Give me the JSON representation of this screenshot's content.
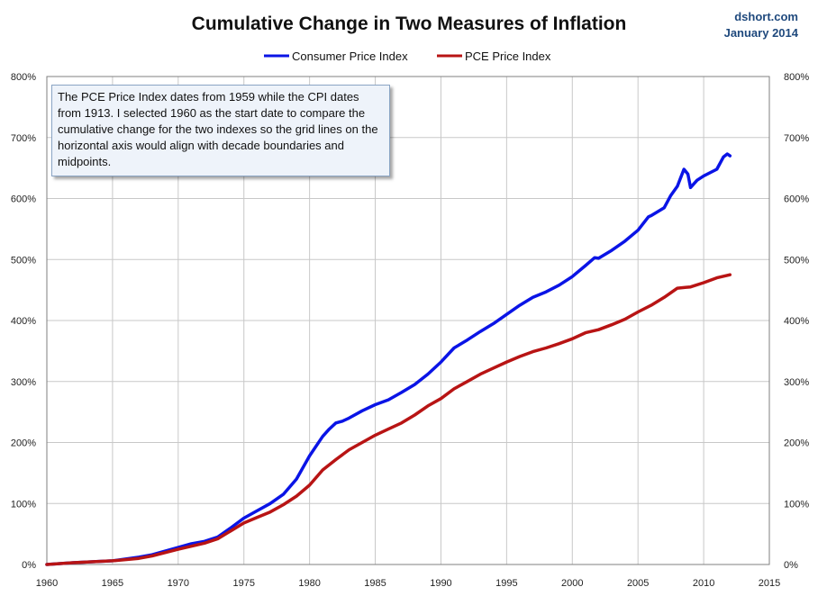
{
  "chart_data": {
    "type": "line",
    "title": "Cumulative Change in Two Measures of Inflation",
    "source": "dshort.com",
    "date_label": "January 2014",
    "annotation": "The PCE Price Index dates from 1959 while the CPI dates from 1913. I selected 1960 as the start date to compare the cumulative change for the two indexes so the grid lines on the horizontal  axis would align with decade boundaries and midpoints.",
    "x_ticks": [
      "1960",
      "1965",
      "1970",
      "1975",
      "1980",
      "1985",
      "1990",
      "1995",
      "2000",
      "2005",
      "2010",
      "2015"
    ],
    "y_ticks": [
      "0%",
      "100%",
      "200%",
      "300%",
      "400%",
      "500%",
      "600%",
      "700%",
      "800%"
    ],
    "xlim": [
      1960,
      2015
    ],
    "ylim": [
      0,
      800
    ],
    "grid": true,
    "legend_position": "top-center",
    "colors": {
      "cpi": "#0a14e6",
      "pce": "#b81414",
      "grid": "#c8c8c8"
    },
    "series": [
      {
        "name": "Consumer Price Index",
        "key": "cpi",
        "points": [
          [
            1960,
            0
          ],
          [
            1962,
            3
          ],
          [
            1965,
            6
          ],
          [
            1967,
            12
          ],
          [
            1968,
            16
          ],
          [
            1970,
            28
          ],
          [
            1971,
            34
          ],
          [
            1972,
            38
          ],
          [
            1973,
            45
          ],
          [
            1974,
            60
          ],
          [
            1975,
            76
          ],
          [
            1976,
            88
          ],
          [
            1977,
            100
          ],
          [
            1978,
            115
          ],
          [
            1979,
            140
          ],
          [
            1980,
            178
          ],
          [
            1981,
            210
          ],
          [
            1981.5,
            222
          ],
          [
            1982,
            232
          ],
          [
            1982.5,
            235
          ],
          [
            1983,
            240
          ],
          [
            1984,
            252
          ],
          [
            1985,
            262
          ],
          [
            1986,
            270
          ],
          [
            1987,
            282
          ],
          [
            1988,
            295
          ],
          [
            1989,
            312
          ],
          [
            1990,
            332
          ],
          [
            1991,
            355
          ],
          [
            1992,
            368
          ],
          [
            1993,
            382
          ],
          [
            1994,
            395
          ],
          [
            1995,
            410
          ],
          [
            1996,
            425
          ],
          [
            1997,
            438
          ],
          [
            1998,
            447
          ],
          [
            1999,
            458
          ],
          [
            2000,
            472
          ],
          [
            2001,
            490
          ],
          [
            2001.7,
            503
          ],
          [
            2002,
            502
          ],
          [
            2003,
            515
          ],
          [
            2004,
            530
          ],
          [
            2005,
            548
          ],
          [
            2005.8,
            570
          ],
          [
            2006,
            572
          ],
          [
            2007,
            585
          ],
          [
            2007.5,
            605
          ],
          [
            2008,
            620
          ],
          [
            2008.5,
            648
          ],
          [
            2008.8,
            640
          ],
          [
            2009,
            618
          ],
          [
            2009.5,
            630
          ],
          [
            2010,
            637
          ],
          [
            2011,
            648
          ],
          [
            2011.5,
            668
          ],
          [
            2011.8,
            673
          ],
          [
            2012,
            670
          ]
        ]
      },
      {
        "name": "PCE Price Index",
        "key": "pce",
        "points": [
          [
            1960,
            0
          ],
          [
            1962,
            3
          ],
          [
            1965,
            6
          ],
          [
            1967,
            10
          ],
          [
            1968,
            14
          ],
          [
            1970,
            25
          ],
          [
            1971,
            30
          ],
          [
            1972,
            35
          ],
          [
            1973,
            42
          ],
          [
            1974,
            55
          ],
          [
            1975,
            68
          ],
          [
            1976,
            77
          ],
          [
            1977,
            86
          ],
          [
            1978,
            98
          ],
          [
            1979,
            112
          ],
          [
            1980,
            130
          ],
          [
            1981,
            155
          ],
          [
            1982,
            172
          ],
          [
            1983,
            188
          ],
          [
            1984,
            200
          ],
          [
            1985,
            212
          ],
          [
            1986,
            222
          ],
          [
            1987,
            232
          ],
          [
            1988,
            245
          ],
          [
            1989,
            260
          ],
          [
            1990,
            272
          ],
          [
            1991,
            288
          ],
          [
            1992,
            300
          ],
          [
            1993,
            312
          ],
          [
            1994,
            322
          ],
          [
            1995,
            332
          ],
          [
            1996,
            341
          ],
          [
            1997,
            349
          ],
          [
            1998,
            355
          ],
          [
            1999,
            362
          ],
          [
            2000,
            370
          ],
          [
            2001,
            380
          ],
          [
            2002,
            385
          ],
          [
            2003,
            393
          ],
          [
            2004,
            402
          ],
          [
            2005,
            414
          ],
          [
            2006,
            425
          ],
          [
            2007,
            438
          ],
          [
            2008,
            453
          ],
          [
            2009,
            455
          ],
          [
            2010,
            462
          ],
          [
            2011,
            470
          ],
          [
            2012,
            475
          ]
        ]
      }
    ]
  }
}
